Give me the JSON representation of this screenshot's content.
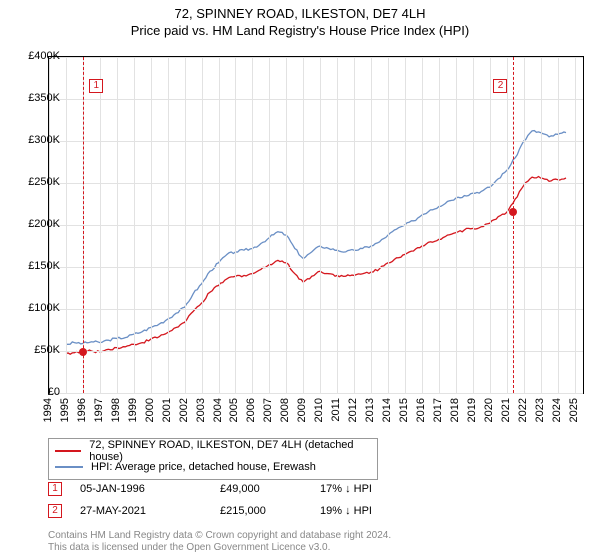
{
  "title": "72, SPINNEY ROAD, ILKESTON, DE7 4LH",
  "subtitle": "Price paid vs. HM Land Registry's House Price Index (HPI)",
  "chart": {
    "type": "line",
    "x_years": [
      1994,
      1995,
      1996,
      1997,
      1998,
      1999,
      2000,
      2001,
      2002,
      2003,
      2004,
      2005,
      2006,
      2007,
      2008,
      2009,
      2010,
      2011,
      2012,
      2013,
      2014,
      2015,
      2016,
      2017,
      2018,
      2019,
      2020,
      2021,
      2022,
      2023,
      2024,
      2025
    ],
    "xlim": [
      1994,
      2025.5
    ],
    "ylim": [
      0,
      400
    ],
    "ytick_step": 50,
    "ytick_prefix": "£",
    "ytick_suffix": "K",
    "grid_color": "#e2e2e2",
    "background": "#ffffff",
    "border_color": "#000000",
    "label_fontsize": 11,
    "series": [
      {
        "id": "hpi",
        "label": "HPI: Average price, detached house, Erewash",
        "color": "#6a8fc5",
        "width": 1.3,
        "data": [
          [
            1995,
            58
          ],
          [
            1995.5,
            60
          ],
          [
            1996,
            59
          ],
          [
            1996.5,
            61
          ],
          [
            1997,
            60
          ],
          [
            1997.5,
            63
          ],
          [
            1998,
            65
          ],
          [
            1998.5,
            66
          ],
          [
            1999,
            70
          ],
          [
            1999.5,
            73
          ],
          [
            2000,
            78
          ],
          [
            2000.5,
            82
          ],
          [
            2001,
            88
          ],
          [
            2001.5,
            95
          ],
          [
            2002,
            102
          ],
          [
            2002.5,
            118
          ],
          [
            2003,
            130
          ],
          [
            2003.5,
            145
          ],
          [
            2004,
            155
          ],
          [
            2004.5,
            165
          ],
          [
            2005,
            168
          ],
          [
            2005.5,
            170
          ],
          [
            2006,
            172
          ],
          [
            2006.5,
            178
          ],
          [
            2007,
            185
          ],
          [
            2007.5,
            192
          ],
          [
            2008,
            188
          ],
          [
            2008.5,
            172
          ],
          [
            2009,
            160
          ],
          [
            2009.5,
            168
          ],
          [
            2010,
            175
          ],
          [
            2010.5,
            172
          ],
          [
            2011,
            170
          ],
          [
            2011.5,
            168
          ],
          [
            2012,
            170
          ],
          [
            2012.5,
            172
          ],
          [
            2013,
            175
          ],
          [
            2013.5,
            180
          ],
          [
            2014,
            188
          ],
          [
            2014.5,
            195
          ],
          [
            2015,
            200
          ],
          [
            2015.5,
            205
          ],
          [
            2016,
            212
          ],
          [
            2016.5,
            218
          ],
          [
            2017,
            222
          ],
          [
            2017.5,
            228
          ],
          [
            2018,
            232
          ],
          [
            2018.5,
            235
          ],
          [
            2019,
            238
          ],
          [
            2019.5,
            240
          ],
          [
            2020,
            245
          ],
          [
            2020.5,
            255
          ],
          [
            2021,
            265
          ],
          [
            2021.5,
            280
          ],
          [
            2022,
            300
          ],
          [
            2022.5,
            312
          ],
          [
            2023,
            310
          ],
          [
            2023.5,
            305
          ],
          [
            2024,
            308
          ],
          [
            2024.5,
            310
          ]
        ]
      },
      {
        "id": "price_paid",
        "label": "72, SPINNEY ROAD, ILKESTON, DE7 4LH (detached house)",
        "color": "#d4171e",
        "width": 1.3,
        "data": [
          [
            1995,
            47
          ],
          [
            1995.5,
            48
          ],
          [
            1996,
            49
          ],
          [
            1996.5,
            50
          ],
          [
            1997,
            49
          ],
          [
            1997.5,
            52
          ],
          [
            1998,
            54
          ],
          [
            1998.5,
            55
          ],
          [
            1999,
            58
          ],
          [
            1999.5,
            60
          ],
          [
            2000,
            64
          ],
          [
            2000.5,
            67
          ],
          [
            2001,
            72
          ],
          [
            2001.5,
            78
          ],
          [
            2002,
            84
          ],
          [
            2002.5,
            97
          ],
          [
            2003,
            107
          ],
          [
            2003.5,
            120
          ],
          [
            2004,
            128
          ],
          [
            2004.5,
            136
          ],
          [
            2005,
            139
          ],
          [
            2005.5,
            140
          ],
          [
            2006,
            142
          ],
          [
            2006.5,
            147
          ],
          [
            2007,
            153
          ],
          [
            2007.5,
            158
          ],
          [
            2008,
            155
          ],
          [
            2008.5,
            142
          ],
          [
            2009,
            132
          ],
          [
            2009.5,
            139
          ],
          [
            2010,
            145
          ],
          [
            2010.5,
            142
          ],
          [
            2011,
            140
          ],
          [
            2011.5,
            139
          ],
          [
            2012,
            140
          ],
          [
            2012.5,
            142
          ],
          [
            2013,
            144
          ],
          [
            2013.5,
            148
          ],
          [
            2014,
            155
          ],
          [
            2014.5,
            161
          ],
          [
            2015,
            165
          ],
          [
            2015.5,
            169
          ],
          [
            2016,
            175
          ],
          [
            2016.5,
            180
          ],
          [
            2017,
            183
          ],
          [
            2017.5,
            188
          ],
          [
            2018,
            191
          ],
          [
            2018.5,
            194
          ],
          [
            2019,
            196
          ],
          [
            2019.5,
            198
          ],
          [
            2020,
            202
          ],
          [
            2020.5,
            210
          ],
          [
            2021,
            215
          ],
          [
            2021.5,
            231
          ],
          [
            2022,
            247
          ],
          [
            2022.5,
            257
          ],
          [
            2023,
            256
          ],
          [
            2023.5,
            252
          ],
          [
            2024,
            254
          ],
          [
            2024.5,
            256
          ]
        ]
      }
    ],
    "sales": [
      {
        "n": "1",
        "year": 1996.02,
        "price_k": 49,
        "date": "05-JAN-1996",
        "price_label": "£49,000",
        "diff": "17% ↓ HPI",
        "marker_color": "#d4171e"
      },
      {
        "n": "2",
        "year": 2021.4,
        "price_k": 215,
        "date": "27-MAY-2021",
        "price_label": "£215,000",
        "diff": "19% ↓ HPI",
        "marker_color": "#d4171e"
      }
    ]
  },
  "legend_entries": [
    {
      "color": "#d4171e",
      "label": "72, SPINNEY ROAD, ILKESTON, DE7 4LH (detached house)"
    },
    {
      "color": "#6a8fc5",
      "label": "HPI: Average price, detached house, Erewash"
    }
  ],
  "attribution": {
    "line1": "Contains HM Land Registry data © Crown copyright and database right 2024.",
    "line2": "This data is licensed under the Open Government Licence v3.0.",
    "color": "#888888"
  }
}
